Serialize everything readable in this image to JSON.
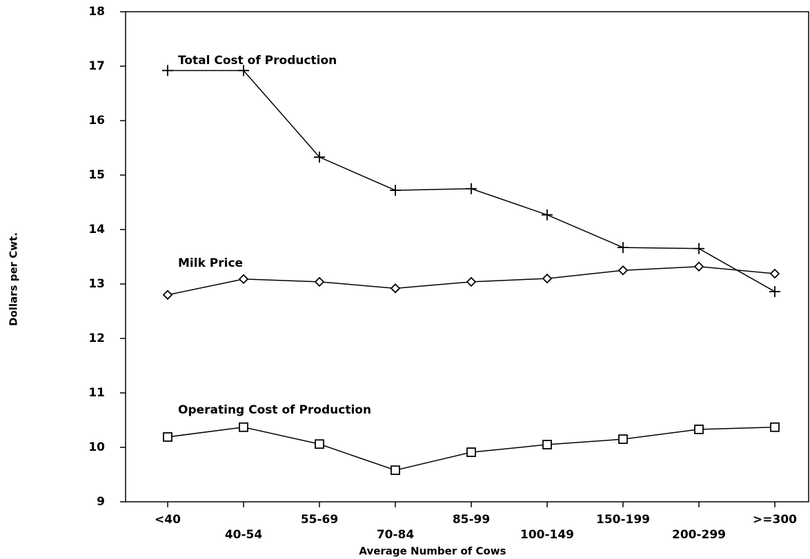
{
  "chart_data": {
    "type": "line",
    "x_label": "Average Number of Cows",
    "y_label": "Dollars per Cwt.",
    "categories": [
      "<40",
      "40-54",
      "55-69",
      "70-84",
      "85-99",
      "100-149",
      "150-199",
      "200-299",
      ">=300"
    ],
    "series": [
      {
        "name": "Total Cost of Production",
        "color": "#000000",
        "marker": "plus",
        "values": [
          16.92,
          16.92,
          15.33,
          14.72,
          14.75,
          14.27,
          13.67,
          13.65,
          12.86
        ]
      },
      {
        "name": "Milk Price",
        "color": "#000000",
        "marker": "diamond",
        "values": [
          12.8,
          13.09,
          13.04,
          12.92,
          13.04,
          13.1,
          13.25,
          13.32,
          13.19
        ]
      },
      {
        "name": "Operating Cost of Production",
        "color": "#000000",
        "marker": "square",
        "values": [
          10.19,
          10.37,
          10.06,
          9.58,
          9.91,
          10.05,
          10.15,
          10.33,
          10.37
        ]
      }
    ],
    "ylim": [
      9,
      18
    ],
    "yticks": [
      9,
      10,
      11,
      12,
      13,
      14,
      15,
      16,
      17,
      18
    ]
  }
}
